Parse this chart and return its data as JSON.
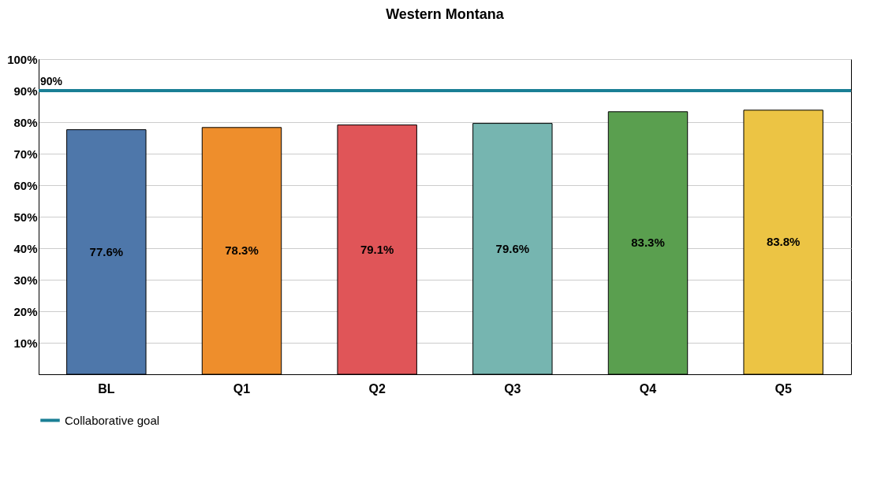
{
  "chart_data": {
    "type": "bar",
    "title": "Western Montana",
    "categories": [
      "BL",
      "Q1",
      "Q2",
      "Q3",
      "Q4",
      "Q5"
    ],
    "values": [
      77.6,
      78.3,
      79.1,
      79.6,
      83.3,
      83.8
    ],
    "colors": [
      "#4e77aa",
      "#ee8e2c",
      "#e05558",
      "#76b5b0",
      "#5a9f4f",
      "#ecc444"
    ],
    "ylim": [
      0,
      100
    ],
    "yticks": [
      {
        "value": 0,
        "label": null
      },
      {
        "value": 10,
        "label": "10%"
      },
      {
        "value": 20,
        "label": "20%"
      },
      {
        "value": 30,
        "label": "30%"
      },
      {
        "value": 40,
        "label": "40%"
      },
      {
        "value": 50,
        "label": "50%"
      },
      {
        "value": 60,
        "label": "60%"
      },
      {
        "value": 70,
        "label": "70%"
      },
      {
        "value": 80,
        "label": "80%"
      },
      {
        "value": 90,
        "label": "90%"
      },
      {
        "value": 100,
        "label": "100%"
      }
    ],
    "value_labels": [
      "77.6%",
      "78.3%",
      "79.1%",
      "79.6%",
      "83.3%",
      "83.8%"
    ],
    "grid": "y",
    "legend": "bottom",
    "ref_lines": [
      {
        "axis": "y",
        "value": 90,
        "label": "Collaborative goal",
        "color": "#1a7f95"
      }
    ],
    "annotations": [
      {
        "text": "90%",
        "y": 90
      }
    ]
  }
}
